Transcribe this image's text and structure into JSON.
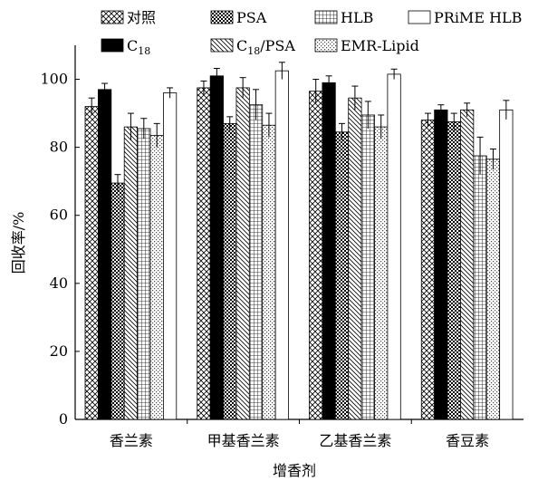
{
  "chart_data": {
    "type": "bar",
    "xlabel": "增香剂",
    "ylabel": "回收率/%",
    "ylim": [
      0,
      110
    ],
    "yticks": [
      0,
      20,
      40,
      60,
      80,
      100
    ],
    "categories": [
      "香兰素",
      "甲基香兰素",
      "乙基香兰素",
      "香豆素"
    ],
    "legend_position": "top",
    "series": [
      {
        "name": "对照",
        "sub": "",
        "suffix": "",
        "pattern": "crosshatch",
        "values": [
          92.0,
          97.5,
          96.5,
          88.0
        ],
        "errors": [
          2.5,
          2.0,
          3.5,
          2.0
        ]
      },
      {
        "name": "C",
        "sub": "18",
        "suffix": "",
        "pattern": "solid",
        "values": [
          97.0,
          101.0,
          99.0,
          91.0
        ],
        "errors": [
          1.8,
          2.2,
          2.0,
          1.5
        ]
      },
      {
        "name": "PSA",
        "sub": "",
        "suffix": "",
        "pattern": "checker",
        "values": [
          69.5,
          87.0,
          84.5,
          87.5
        ],
        "errors": [
          2.5,
          2.0,
          2.5,
          2.5
        ]
      },
      {
        "name": "C",
        "sub": "18",
        "suffix": "/PSA",
        "pattern": "diagonal",
        "values": [
          86.0,
          97.5,
          94.5,
          91.0
        ],
        "errors": [
          4.0,
          3.0,
          3.5,
          2.0
        ]
      },
      {
        "name": "HLB",
        "sub": "",
        "suffix": "",
        "pattern": "grid",
        "values": [
          85.5,
          92.5,
          89.5,
          77.5
        ],
        "errors": [
          3.0,
          4.5,
          4.0,
          5.5
        ]
      },
      {
        "name": "EMR-Lipid",
        "sub": "",
        "suffix": "",
        "pattern": "dots",
        "values": [
          83.5,
          86.5,
          86.0,
          76.5
        ],
        "errors": [
          3.5,
          3.5,
          3.5,
          3.0
        ]
      },
      {
        "name": "PRiME HLB",
        "sub": "",
        "suffix": "",
        "pattern": "white",
        "values": [
          96.0,
          102.5,
          101.5,
          91.0
        ],
        "errors": [
          1.5,
          2.5,
          1.5,
          2.8
        ]
      }
    ]
  }
}
